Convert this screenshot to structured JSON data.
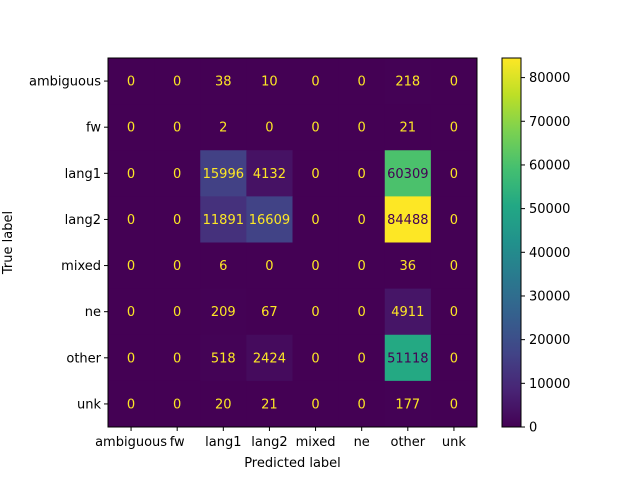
{
  "chart_data": {
    "type": "heatmap",
    "title": "",
    "xlabel": "Predicted label",
    "ylabel": "True label",
    "x_categories": [
      "ambiguous",
      "fw",
      "lang1",
      "lang2",
      "mixed",
      "ne",
      "other",
      "unk"
    ],
    "y_categories": [
      "ambiguous",
      "fw",
      "lang1",
      "lang2",
      "mixed",
      "ne",
      "other",
      "unk"
    ],
    "values": [
      [
        0,
        0,
        38,
        10,
        0,
        0,
        218,
        0
      ],
      [
        0,
        0,
        2,
        0,
        0,
        0,
        21,
        0
      ],
      [
        0,
        0,
        15996,
        4132,
        0,
        0,
        60309,
        0
      ],
      [
        0,
        0,
        11891,
        16609,
        0,
        0,
        84488,
        0
      ],
      [
        0,
        0,
        6,
        0,
        0,
        0,
        36,
        0
      ],
      [
        0,
        0,
        209,
        67,
        0,
        0,
        4911,
        0
      ],
      [
        0,
        0,
        518,
        2424,
        0,
        0,
        51118,
        0
      ],
      [
        0,
        0,
        20,
        21,
        0,
        0,
        177,
        0
      ]
    ],
    "colormap": "viridis",
    "colorbar": {
      "min": 0,
      "max": 84488,
      "ticks": [
        0,
        10000,
        20000,
        30000,
        40000,
        50000,
        60000,
        70000,
        80000
      ]
    },
    "text_colors": {
      "light": "#fde725",
      "dark": "#440154"
    },
    "grid": false
  }
}
